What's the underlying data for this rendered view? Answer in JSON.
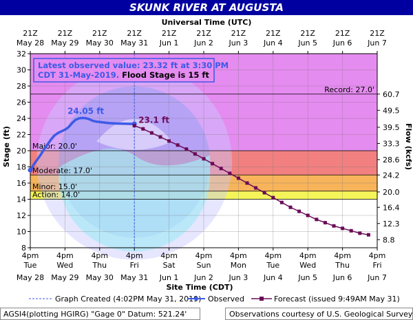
{
  "chart_data": {
    "type": "line",
    "title": "SKUNK RIVER AT AUGUSTA",
    "top_axis_title": "Universal Time (UTC)",
    "xlabel": "Site Time (CDT)",
    "ylabel": "Stage (ft)",
    "y2label": "Flow (kcfs)",
    "ylim": [
      8,
      32
    ],
    "yticks": [
      8,
      10,
      12,
      14,
      16,
      18,
      20,
      22,
      24,
      26,
      28,
      30,
      32
    ],
    "flow_ticks": [
      {
        "stage": 9,
        "label": "8.8"
      },
      {
        "stage": 11,
        "label": "12.3"
      },
      {
        "stage": 13,
        "label": "16.4"
      },
      {
        "stage": 14.9,
        "label": "20.0"
      },
      {
        "stage": 17,
        "label": "24.2"
      },
      {
        "stage": 18.9,
        "label": "28.6"
      },
      {
        "stage": 20.9,
        "label": "33.3"
      },
      {
        "stage": 22.9,
        "label": "39.5"
      },
      {
        "stage": 25,
        "label": "49.5"
      },
      {
        "stage": 27,
        "label": "60.7"
      }
    ],
    "xlim_days": [
      0,
      10
    ],
    "bottom_ticks": [
      {
        "line1": "4pm",
        "line2": "Tue",
        "line3": "May 28"
      },
      {
        "line1": "4pm",
        "line2": "Wed",
        "line3": "May 29"
      },
      {
        "line1": "4pm",
        "line2": "Thu",
        "line3": "May 30"
      },
      {
        "line1": "4pm",
        "line2": "Fri",
        "line3": "May 31"
      },
      {
        "line1": "4pm",
        "line2": "Sat",
        "line3": "Jun 1"
      },
      {
        "line1": "4pm",
        "line2": "Sun",
        "line3": "Jun 2"
      },
      {
        "line1": "4pm",
        "line2": "Mon",
        "line3": "Jun 3"
      },
      {
        "line1": "4pm",
        "line2": "Tue",
        "line3": "Jun 4"
      },
      {
        "line1": "4pm",
        "line2": "Wed",
        "line3": "Jun 5"
      },
      {
        "line1": "4pm",
        "line2": "Thu",
        "line3": "Jun 6"
      },
      {
        "line1": "4pm",
        "line2": "Fri",
        "line3": "Jun 7"
      }
    ],
    "top_ticks": [
      {
        "line1": "21Z",
        "line2": "May 28"
      },
      {
        "line1": "21Z",
        "line2": "May 29"
      },
      {
        "line1": "21Z",
        "line2": "May 30"
      },
      {
        "line1": "21Z",
        "line2": "May 31"
      },
      {
        "line1": "21Z",
        "line2": "Jun 1"
      },
      {
        "line1": "21Z",
        "line2": "Jun 2"
      },
      {
        "line1": "21Z",
        "line2": "Jun 3"
      },
      {
        "line1": "21Z",
        "line2": "Jun 4"
      },
      {
        "line1": "21Z",
        "line2": "Jun 5"
      },
      {
        "line1": "21Z",
        "line2": "Jun 6"
      },
      {
        "line1": "21Z",
        "line2": "Jun 7"
      }
    ],
    "flood_categories": [
      {
        "name": "Record",
        "label": "Record: 27.0'",
        "value": 27.0
      },
      {
        "name": "Major",
        "label": "Major: 20.0'",
        "value": 20.0
      },
      {
        "name": "Moderate",
        "label": "Moderate: 17.0'",
        "value": 17.0
      },
      {
        "name": "Minor",
        "label": "Minor: 15.0'",
        "value": 15.0
      },
      {
        "name": "Action",
        "label": "Action: 14.0'",
        "value": 14.0
      }
    ],
    "bands": [
      {
        "from": 20,
        "to": 32,
        "color": "#e58cf0"
      },
      {
        "from": 17,
        "to": 20,
        "color": "#f28080"
      },
      {
        "from": 15,
        "to": 17,
        "color": "#f7b45a"
      },
      {
        "from": 14,
        "to": 15,
        "color": "#f5f55a"
      }
    ],
    "series": [
      {
        "name": "Observed",
        "color": "#3c5ae6",
        "x": [
          0.0,
          0.05,
          0.1,
          0.2,
          0.3,
          0.4,
          0.5,
          0.6,
          0.7,
          0.8,
          0.9,
          1.0,
          1.1,
          1.2,
          1.3,
          1.4,
          1.5,
          1.6,
          1.7,
          1.8,
          1.9,
          2.0,
          2.1,
          2.2,
          2.3,
          2.4,
          2.5,
          2.6,
          2.7,
          2.8,
          2.9,
          3.0
        ],
        "y": [
          17.6,
          17.9,
          18.3,
          18.9,
          19.5,
          20.2,
          20.8,
          21.4,
          21.9,
          22.2,
          22.4,
          22.6,
          22.9,
          23.4,
          23.8,
          24.0,
          24.05,
          24.02,
          23.9,
          23.7,
          23.6,
          23.55,
          23.5,
          23.45,
          23.4,
          23.38,
          23.36,
          23.35,
          23.34,
          23.33,
          23.32,
          23.32
        ]
      },
      {
        "name": "Forecast (issued 9:49AM May 31)",
        "color": "#6b0a57",
        "x": [
          3.0,
          3.25,
          3.5,
          3.75,
          4.0,
          4.25,
          4.5,
          4.75,
          5.0,
          5.25,
          5.5,
          5.75,
          6.0,
          6.25,
          6.5,
          6.75,
          7.0,
          7.25,
          7.5,
          7.75,
          8.0,
          8.25,
          8.5,
          8.75,
          9.0,
          9.25,
          9.5,
          9.75
        ],
        "y": [
          23.1,
          22.7,
          22.2,
          21.7,
          21.2,
          20.7,
          20.2,
          19.6,
          19.0,
          18.4,
          17.8,
          17.2,
          16.6,
          16.0,
          15.4,
          14.8,
          14.2,
          13.6,
          13.0,
          12.5,
          12.0,
          11.5,
          11.1,
          10.7,
          10.4,
          10.1,
          9.8,
          9.6
        ]
      }
    ],
    "annotations": {
      "peak_label": "24.05 ft",
      "peak_x": 1.6,
      "peak_y": 24.05,
      "forecast_start_label": "23.1 ft",
      "forecast_start_x": 3.0,
      "forecast_start_y": 23.1
    },
    "info_box": {
      "line1": "Latest observed value: 23.32 ft at 3:30 PM",
      "line2a": "CDT 31-May-2019.",
      "line2b": " Flood Stage is 15 ft"
    },
    "legend": {
      "created": "Graph Created (4:02PM May 31, 2019)",
      "observed": "Observed",
      "forecast": "Forecast (issued 9:49AM May 31)"
    },
    "footer": {
      "left": "AGSI4(plotting HGIRG) \"Gage 0\" Datum:  521.24'",
      "right": "Observations courtesy of U.S. Geological Survey"
    },
    "created_x": 3.0,
    "grid": true
  },
  "colors": {
    "title_bg": "#0000a0",
    "observed": "#3c5ae6",
    "forecast": "#6b0a57",
    "info_text": "#3c5ae6"
  }
}
